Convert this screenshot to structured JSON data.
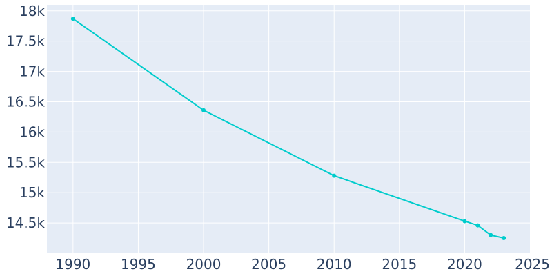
{
  "colors": {
    "background": "#ffffff",
    "plot_background": "#e5ecf6",
    "grid": "#ffffff",
    "line": "#00cccc",
    "tick_text": "#2a3f5f"
  },
  "chart_data": {
    "type": "line",
    "title": "",
    "xlabel": "",
    "ylabel": "",
    "grid": true,
    "xlim": [
      1988,
      2025
    ],
    "ylim": [
      14000,
      18100
    ],
    "x_ticks": [
      1990,
      1995,
      2000,
      2005,
      2010,
      2015,
      2020,
      2025
    ],
    "x_tick_labels": [
      "1990",
      "1995",
      "2000",
      "2005",
      "2010",
      "2015",
      "2020",
      "2025"
    ],
    "y_ticks": [
      14500,
      15000,
      15500,
      16000,
      16500,
      17000,
      17500,
      18000
    ],
    "y_tick_labels": [
      "14.5k",
      "15k",
      "15.5k",
      "16k",
      "16.5k",
      "17k",
      "17.5k",
      "18k"
    ],
    "series": [
      {
        "x": [
          1990,
          2000,
          2010,
          2020,
          2021,
          2022,
          2023
        ],
        "y": [
          17870,
          16360,
          15280,
          14530,
          14460,
          14300,
          14250
        ]
      }
    ]
  }
}
